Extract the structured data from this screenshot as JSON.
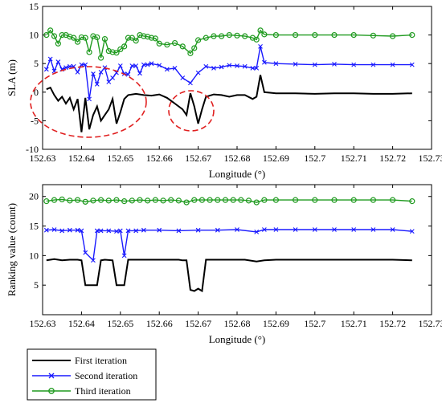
{
  "chart_data": [
    {
      "type": "line",
      "xlabel": "Longitude (°)",
      "ylabel": "SLA (m)",
      "xlim": [
        152.63,
        152.73
      ],
      "ylim": [
        -10,
        15
      ],
      "xticks": [
        "152.63",
        "152.64",
        "152.65",
        "152.66",
        "152.67",
        "152.68",
        "152.69",
        "152.7",
        "152.71",
        "152.72",
        "152.73"
      ],
      "yticks": [
        "-10",
        "-5",
        "0",
        "5",
        "10",
        "15"
      ],
      "grid": false,
      "annotations": [
        "dashed red ellipse around 152.637–152.657 dips",
        "dashed red ellipse around 152.667–152.675 dips"
      ],
      "series": [
        {
          "name": "Third iteration",
          "color": "#1f9a1f",
          "marker": "circle",
          "x": [
            152.631,
            152.632,
            152.633,
            152.634,
            152.635,
            152.636,
            152.637,
            152.638,
            152.639,
            152.64,
            152.641,
            152.642,
            152.643,
            152.644,
            152.645,
            152.646,
            152.647,
            152.648,
            152.649,
            152.65,
            152.651,
            152.652,
            152.653,
            152.654,
            152.655,
            152.656,
            152.657,
            152.658,
            152.659,
            152.66,
            152.662,
            152.664,
            152.666,
            152.668,
            152.669,
            152.67,
            152.672,
            152.674,
            152.676,
            152.678,
            152.68,
            152.682,
            152.684,
            152.685,
            152.686,
            152.687,
            152.69,
            152.695,
            152.7,
            152.705,
            152.71,
            152.715,
            152.72,
            152.725
          ],
          "y": [
            10,
            10.8,
            9.8,
            8.5,
            10,
            10,
            9.7,
            9.5,
            8.8,
            9.6,
            9.5,
            7,
            9.8,
            9.6,
            6,
            9.3,
            7.2,
            7,
            6.9,
            7.5,
            8,
            9.5,
            9.5,
            9,
            10,
            9.8,
            9.7,
            9.5,
            9.4,
            8.5,
            8.3,
            8.6,
            8,
            6.8,
            7.7,
            9.1,
            9.5,
            9.8,
            9.8,
            10,
            9.9,
            9.8,
            9.5,
            9.2,
            10.8,
            10.1,
            10,
            10,
            10,
            10,
            10,
            9.9,
            9.8,
            10
          ]
        },
        {
          "name": "Second iteration",
          "color": "#1a1aff",
          "marker": "x",
          "x": [
            152.631,
            152.632,
            152.633,
            152.634,
            152.635,
            152.636,
            152.637,
            152.638,
            152.639,
            152.64,
            152.641,
            152.642,
            152.643,
            152.644,
            152.645,
            152.646,
            152.647,
            152.648,
            152.649,
            152.65,
            152.651,
            152.652,
            152.653,
            152.654,
            152.655,
            152.656,
            152.657,
            152.658,
            152.66,
            152.662,
            152.664,
            152.666,
            152.668,
            152.67,
            152.672,
            152.674,
            152.676,
            152.678,
            152.68,
            152.682,
            152.684,
            152.685,
            152.686,
            152.687,
            152.69,
            152.695,
            152.7,
            152.705,
            152.71,
            152.715,
            152.72,
            152.725
          ],
          "y": [
            4,
            5.8,
            3.7,
            5.3,
            4,
            4.3,
            4.5,
            4.5,
            3.5,
            4.8,
            4.8,
            -1.2,
            3.2,
            1.4,
            3.5,
            4.3,
            1.8,
            2.5,
            3.4,
            4.6,
            3.2,
            3.1,
            4.6,
            4.6,
            3.3,
            4.8,
            4.8,
            5,
            4.7,
            4,
            4.2,
            2.5,
            1.6,
            3.4,
            4.5,
            4.2,
            4.4,
            4.7,
            4.6,
            4.5,
            4.2,
            4.2,
            8,
            5.2,
            5,
            4.9,
            4.8,
            4.9,
            4.8,
            4.8,
            4.8,
            4.8
          ]
        },
        {
          "name": "First iteration",
          "color": "#000000",
          "marker": "none",
          "x": [
            152.631,
            152.632,
            152.633,
            152.634,
            152.635,
            152.636,
            152.637,
            152.638,
            152.639,
            152.64,
            152.641,
            152.642,
            152.643,
            152.644,
            152.645,
            152.646,
            152.647,
            152.648,
            152.649,
            152.65,
            152.651,
            152.652,
            152.654,
            152.656,
            152.658,
            152.66,
            152.662,
            152.664,
            152.666,
            152.667,
            152.668,
            152.669,
            152.67,
            152.671,
            152.672,
            152.674,
            152.676,
            152.678,
            152.68,
            152.682,
            152.684,
            152.685,
            152.686,
            152.687,
            152.69,
            152.695,
            152.7,
            152.705,
            152.71,
            152.715,
            152.72,
            152.725
          ],
          "y": [
            0.5,
            0.8,
            -0.5,
            -1.5,
            -0.8,
            -2,
            -1,
            -3,
            -1.2,
            -7,
            -1,
            -6.5,
            -4,
            -2.5,
            -5,
            -4,
            -3,
            -1.2,
            -5.5,
            -3.5,
            -1.2,
            -0.5,
            -0.3,
            -0.5,
            -0.6,
            -0.4,
            -1,
            -2,
            -3,
            -4,
            -0.2,
            -2.5,
            -5.5,
            -3,
            -0.8,
            -0.4,
            -0.5,
            -0.8,
            -0.5,
            -0.5,
            -1.2,
            -0.8,
            3,
            0,
            -0.2,
            -0.2,
            -0.3,
            -0.2,
            -0.2,
            -0.3,
            -0.3,
            -0.2
          ]
        }
      ]
    },
    {
      "type": "line",
      "xlabel": "Longitude (°)",
      "ylabel": "Ranking value (count)",
      "xlim": [
        152.63,
        152.73
      ],
      "ylim": [
        0,
        22
      ],
      "xticks": [
        "152.63",
        "152.64",
        "152.65",
        "152.66",
        "152.67",
        "152.68",
        "152.69",
        "152.7",
        "152.71",
        "152.72",
        "152.73"
      ],
      "yticks": [
        "5",
        "10",
        "15",
        "20"
      ],
      "grid": false,
      "series": [
        {
          "name": "Third iteration",
          "color": "#1f9a1f",
          "marker": "circle",
          "x": [
            152.631,
            152.633,
            152.635,
            152.637,
            152.639,
            152.641,
            152.643,
            152.645,
            152.647,
            152.649,
            152.651,
            152.653,
            152.655,
            152.657,
            152.659,
            152.661,
            152.663,
            152.665,
            152.667,
            152.669,
            152.671,
            152.673,
            152.675,
            152.677,
            152.679,
            152.681,
            152.683,
            152.685,
            152.687,
            152.69,
            152.695,
            152.7,
            152.705,
            152.71,
            152.715,
            152.72,
            152.725
          ],
          "y": [
            19.2,
            19.4,
            19.5,
            19.3,
            19.4,
            19.1,
            19.3,
            19.4,
            19.3,
            19.4,
            19.2,
            19.3,
            19.4,
            19.3,
            19.4,
            19.3,
            19.4,
            19.3,
            19.0,
            19.4,
            19.4,
            19.4,
            19.4,
            19.4,
            19.4,
            19.4,
            19.3,
            19.0,
            19.4,
            19.4,
            19.4,
            19.4,
            19.4,
            19.4,
            19.4,
            19.4,
            19.2
          ]
        },
        {
          "name": "Second iteration",
          "color": "#1a1aff",
          "marker": "x",
          "x": [
            152.631,
            152.633,
            152.635,
            152.637,
            152.639,
            152.64,
            152.641,
            152.643,
            152.644,
            152.645,
            152.647,
            152.649,
            152.65,
            152.651,
            152.652,
            152.654,
            152.656,
            152.66,
            152.665,
            152.67,
            152.675,
            152.68,
            152.685,
            152.687,
            152.69,
            152.695,
            152.7,
            152.705,
            152.71,
            152.715,
            152.72,
            152.725
          ],
          "y": [
            14.3,
            14.4,
            14.2,
            14.3,
            14.3,
            14.2,
            10.5,
            9.2,
            14.2,
            14.2,
            14.2,
            14.1,
            14.2,
            10,
            14.2,
            14.2,
            14.3,
            14.3,
            14.2,
            14.3,
            14.3,
            14.4,
            14.0,
            14.4,
            14.4,
            14.4,
            14.4,
            14.4,
            14.4,
            14.4,
            14.4,
            14.1
          ]
        },
        {
          "name": "First iteration",
          "color": "#000000",
          "marker": "none",
          "x": [
            152.631,
            152.633,
            152.635,
            152.637,
            152.639,
            152.64,
            152.641,
            152.643,
            152.644,
            152.645,
            152.646,
            152.648,
            152.649,
            152.65,
            152.651,
            152.652,
            152.654,
            152.656,
            152.66,
            152.665,
            152.666,
            152.667,
            152.668,
            152.669,
            152.67,
            152.671,
            152.672,
            152.674,
            152.678,
            152.682,
            152.685,
            152.687,
            152.69,
            152.695,
            152.7,
            152.705,
            152.71,
            152.715,
            152.72,
            152.725
          ],
          "y": [
            9.2,
            9.4,
            9.2,
            9.3,
            9.3,
            9.2,
            5,
            5,
            5,
            9.2,
            9.3,
            9.2,
            5,
            5,
            5,
            9.3,
            9.3,
            9.3,
            9.3,
            9.3,
            9.2,
            9.2,
            4.2,
            4.0,
            4.4,
            4,
            9.3,
            9.3,
            9.3,
            9.3,
            9.0,
            9.2,
            9.3,
            9.3,
            9.3,
            9.3,
            9.3,
            9.3,
            9.3,
            9.2
          ]
        }
      ]
    }
  ],
  "legend": {
    "entries": [
      "First iteration",
      "Second iteration",
      "Third iteration"
    ],
    "colors": [
      "#000000",
      "#1a1aff",
      "#1f9a1f"
    ]
  }
}
